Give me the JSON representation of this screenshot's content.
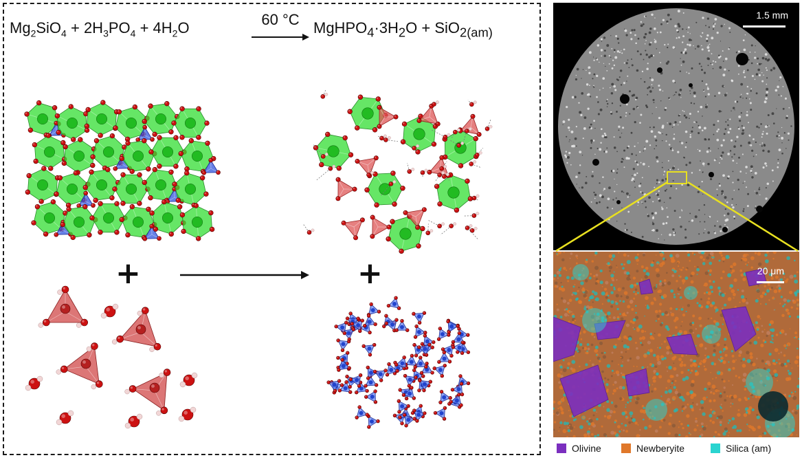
{
  "equation": {
    "reactant_1": "Mg₂SiO₄",
    "reactant_2": "2H₃PO₄",
    "reactant_3": "4H₂O",
    "plus": "+",
    "condition": "60 °C",
    "product_1": "MgHPO₄·3H₂O",
    "product_2": "SiO₂(am)"
  },
  "reaction_plus": "+",
  "ct_image": {
    "scale_label": "1.5 mm"
  },
  "eds_image": {
    "scale_label": "20 μm"
  },
  "legend": [
    {
      "label": "Olivine",
      "color": "#7b2fbf"
    },
    {
      "label": "Newberyite",
      "color": "#e0782a"
    },
    {
      "label": "Silica (am)",
      "color": "#2ad4d0"
    }
  ],
  "colors": {
    "mg_octahedra": "#33dd33",
    "si_tetrahedra": "#3355dd",
    "p_tetrahedra": "#cc3333",
    "oxygen": "#cc1111",
    "hydrogen": "#f2d6d6",
    "highlight_box": "#e8e020"
  }
}
